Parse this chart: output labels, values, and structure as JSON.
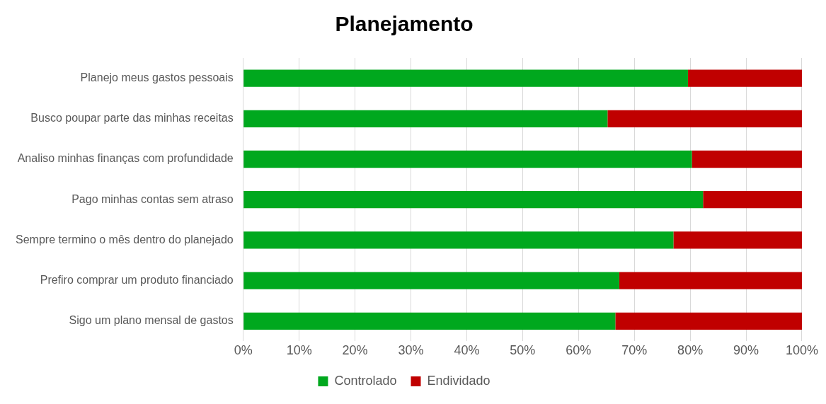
{
  "chart_data": {
    "type": "bar",
    "title": "Planejamento",
    "orientation": "horizontal",
    "stacked": true,
    "categories": [
      "Planejo meus gastos pessoais",
      "Busco poupar parte das minhas receitas",
      "Analiso minhas finanças com profundidade",
      "Pago minhas contas sem atraso",
      "Sempre termino o mês dentro do planejado",
      "Prefiro comprar um produto financiado",
      "Sigo um plano mensal de gastos"
    ],
    "series": [
      {
        "name": "Controlado",
        "color": "#00a81e",
        "values": [
          79.6,
          65.2,
          80.3,
          82.3,
          77.0,
          67.3,
          66.6
        ]
      },
      {
        "name": "Endividado",
        "color": "#c00000",
        "values": [
          20.4,
          34.8,
          19.7,
          17.7,
          23.0,
          32.7,
          33.4
        ]
      }
    ],
    "xlim": [
      0,
      100
    ],
    "xticks": [
      {
        "value": 0,
        "label": "0%"
      },
      {
        "value": 10,
        "label": "10%"
      },
      {
        "value": 20,
        "label": "20%"
      },
      {
        "value": 30,
        "label": "30%"
      },
      {
        "value": 40,
        "label": "40%"
      },
      {
        "value": 50,
        "label": "50%"
      },
      {
        "value": 60,
        "label": "60%"
      },
      {
        "value": 70,
        "label": "70%"
      },
      {
        "value": 80,
        "label": "80%"
      },
      {
        "value": 90,
        "label": "90%"
      },
      {
        "value": 100,
        "label": "100%"
      }
    ],
    "grid": "x",
    "legend": "bottom"
  }
}
